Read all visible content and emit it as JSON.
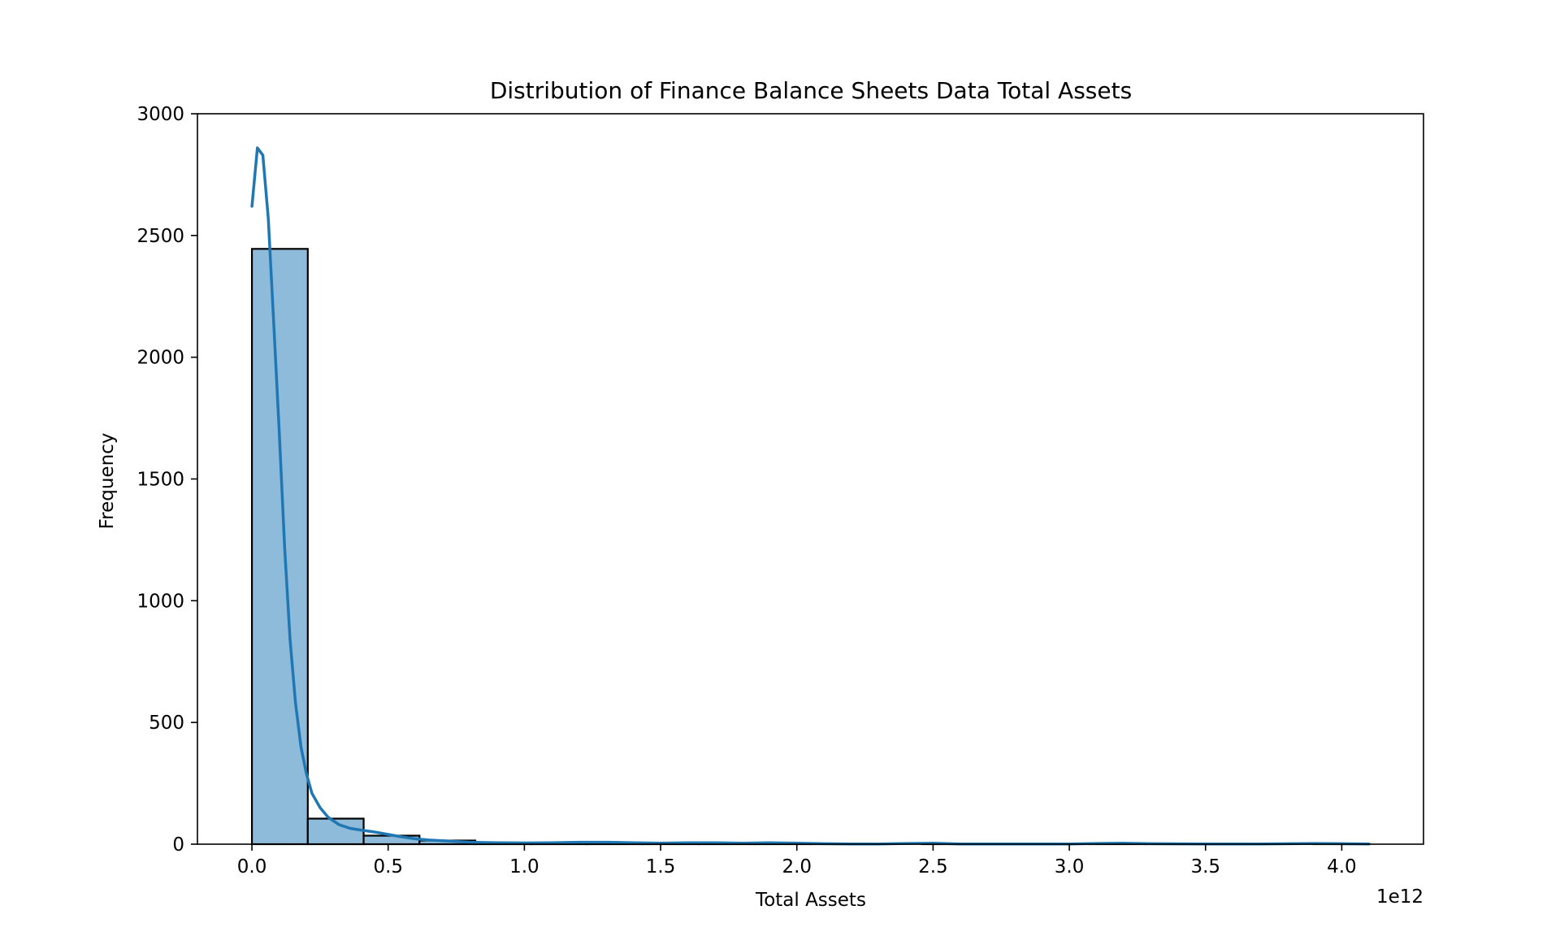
{
  "chart_data": {
    "type": "bar",
    "subtype": "histogram",
    "title": "Distribution of Finance Balance Sheets Data Total Assets",
    "xlabel": "Total Assets",
    "ylabel": "Frequency",
    "x_offset_label": "1e12",
    "x_scale": 1000000000000.0,
    "xlim": [
      -0.2,
      4.3
    ],
    "ylim": [
      0,
      3000
    ],
    "x_ticks": [
      0.0,
      0.5,
      1.0,
      1.5,
      2.0,
      2.5,
      3.0,
      3.5,
      4.0
    ],
    "x_tick_labels": [
      "0.0",
      "0.5",
      "1.0",
      "1.5",
      "2.0",
      "2.5",
      "3.0",
      "3.5",
      "4.0"
    ],
    "y_ticks": [
      0,
      500,
      1000,
      1500,
      2000,
      2500,
      3000
    ],
    "y_tick_labels": [
      "0",
      "500",
      "1000",
      "1500",
      "2000",
      "2500",
      "3000"
    ],
    "bin_width": 0.205,
    "bins": [
      {
        "x0": 0.0,
        "count": 2445
      },
      {
        "x0": 0.205,
        "count": 105
      },
      {
        "x0": 0.41,
        "count": 35
      },
      {
        "x0": 0.615,
        "count": 15
      },
      {
        "x0": 0.82,
        "count": 6
      },
      {
        "x0": 1.025,
        "count": 2
      },
      {
        "x0": 1.23,
        "count": 3
      },
      {
        "x0": 1.435,
        "count": 1
      },
      {
        "x0": 1.64,
        "count": 3
      },
      {
        "x0": 1.845,
        "count": 2
      },
      {
        "x0": 2.05,
        "count": 1
      },
      {
        "x0": 2.255,
        "count": 0
      },
      {
        "x0": 2.46,
        "count": 2
      },
      {
        "x0": 2.665,
        "count": 0
      },
      {
        "x0": 2.87,
        "count": 0
      },
      {
        "x0": 3.075,
        "count": 2
      },
      {
        "x0": 3.28,
        "count": 1
      },
      {
        "x0": 3.485,
        "count": 0
      },
      {
        "x0": 3.69,
        "count": 0
      },
      {
        "x0": 3.895,
        "count": 1
      }
    ],
    "kde": {
      "x": [
        0.0,
        0.02,
        0.04,
        0.06,
        0.08,
        0.1,
        0.12,
        0.14,
        0.16,
        0.18,
        0.2,
        0.22,
        0.25,
        0.28,
        0.32,
        0.36,
        0.4,
        0.45,
        0.5,
        0.55,
        0.6,
        0.65,
        0.7,
        0.8,
        0.9,
        1.0,
        1.1,
        1.2,
        1.3,
        1.4,
        1.5,
        1.6,
        1.7,
        1.8,
        1.9,
        2.0,
        2.1,
        2.2,
        2.3,
        2.4,
        2.5,
        2.6,
        2.8,
        3.0,
        3.1,
        3.2,
        3.3,
        3.5,
        3.7,
        3.9,
        4.1
      ],
      "y": [
        2620,
        2860,
        2830,
        2570,
        2140,
        1700,
        1220,
        840,
        580,
        400,
        290,
        210,
        150,
        110,
        80,
        65,
        58,
        50,
        40,
        30,
        22,
        17,
        14,
        8,
        6,
        5,
        6,
        8,
        8,
        6,
        4,
        6,
        6,
        4,
        6,
        4,
        2,
        1,
        1,
        3,
        4,
        1,
        1,
        1,
        3,
        4,
        2,
        1,
        1,
        3,
        1
      ]
    },
    "colors": {
      "bar_fill": "#8fbbdb",
      "bar_edge": "#000000",
      "kde_line": "#1f77b4"
    },
    "grid": false,
    "legend": "none"
  }
}
